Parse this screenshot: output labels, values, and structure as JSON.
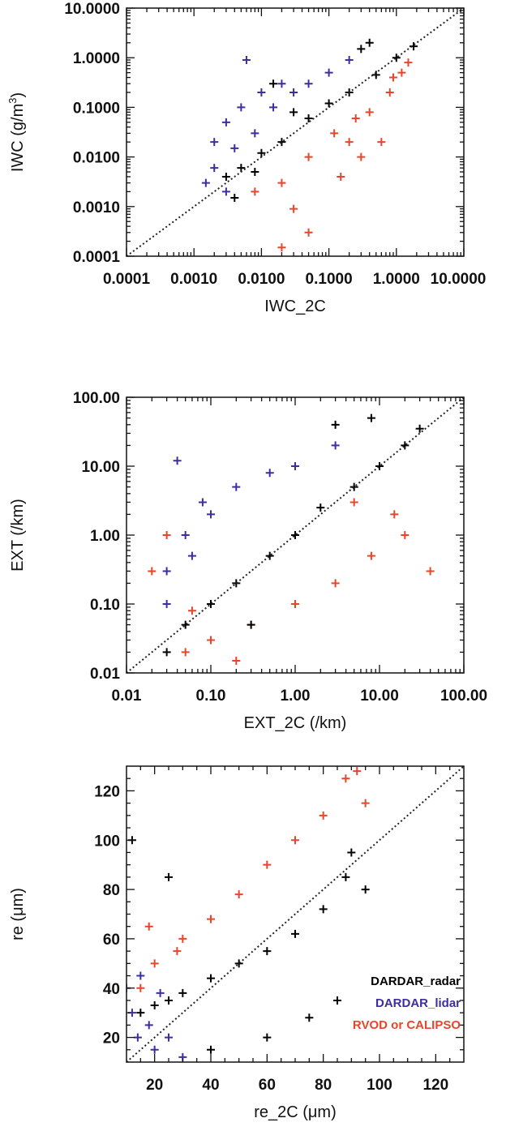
{
  "chart_data": [
    {
      "type": "scatter",
      "title": "",
      "xlabel": "IWC_2C",
      "ylabel": "IWC (g/m",
      "ylabel_sup": "3",
      "ylabel_end": ")",
      "xscale": "log",
      "yscale": "log",
      "xlim": [
        0.0001,
        10
      ],
      "ylim": [
        0.0001,
        10
      ],
      "xticks": [
        0.0001,
        0.001,
        0.01,
        0.1,
        1,
        10
      ],
      "xtick_labels": [
        "0.0001",
        "0.0010",
        "0.0100",
        "0.1000",
        "1.0000",
        "10.0000"
      ],
      "yticks": [
        0.0001,
        0.001,
        0.01,
        0.1,
        1,
        10
      ],
      "ytick_labels": [
        "0.0001",
        "0.0010",
        "0.0100",
        "0.1000",
        "1.0000",
        "10.0000"
      ],
      "one_to_one_line": true,
      "series": [
        {
          "color": "#e8452a",
          "points": [
            [
              0.008,
              0.002
            ],
            [
              0.02,
              0.003
            ],
            [
              0.05,
              0.01
            ],
            [
              0.12,
              0.03
            ],
            [
              0.2,
              0.02
            ],
            [
              0.4,
              0.08
            ],
            [
              0.9,
              0.4
            ],
            [
              1.5,
              0.8
            ],
            [
              0.15,
              0.004
            ],
            [
              0.3,
              0.01
            ],
            [
              0.6,
              0.02
            ],
            [
              0.03,
              0.0009
            ],
            [
              0.05,
              0.0003
            ],
            [
              0.02,
              0.00015
            ],
            [
              0.8,
              0.2
            ],
            [
              1.2,
              0.5
            ],
            [
              0.25,
              0.06
            ]
          ]
        },
        {
          "color": "#3b2ea0",
          "points": [
            [
              0.002,
              0.02
            ],
            [
              0.003,
              0.05
            ],
            [
              0.005,
              0.1
            ],
            [
              0.002,
              0.006
            ],
            [
              0.01,
              0.2
            ],
            [
              0.015,
              0.1
            ],
            [
              0.02,
              0.3
            ],
            [
              0.004,
              0.015
            ],
            [
              0.0015,
              0.003
            ],
            [
              0.003,
              0.002
            ],
            [
              0.006,
              0.9
            ],
            [
              0.008,
              0.03
            ],
            [
              0.03,
              0.2
            ],
            [
              0.05,
              0.3
            ],
            [
              0.1,
              0.5
            ],
            [
              0.2,
              0.9
            ]
          ]
        },
        {
          "color": "#000000",
          "points": [
            [
              0.003,
              0.004
            ],
            [
              0.005,
              0.006
            ],
            [
              0.01,
              0.012
            ],
            [
              0.02,
              0.02
            ],
            [
              0.05,
              0.06
            ],
            [
              0.1,
              0.12
            ],
            [
              0.2,
              0.2
            ],
            [
              0.5,
              0.45
            ],
            [
              1,
              1
            ],
            [
              1.8,
              1.7
            ],
            [
              0.015,
              0.3
            ],
            [
              0.3,
              1.5
            ],
            [
              0.4,
              2
            ],
            [
              0.03,
              0.08
            ],
            [
              0.008,
              0.005
            ],
            [
              0.004,
              0.0015
            ]
          ]
        }
      ]
    },
    {
      "type": "scatter",
      "title": "",
      "xlabel": "EXT_2C (/km)",
      "ylabel": "EXT (/km)",
      "xscale": "log",
      "yscale": "log",
      "xlim": [
        0.01,
        100
      ],
      "ylim": [
        0.01,
        100
      ],
      "xticks": [
        0.01,
        0.1,
        1,
        10,
        100
      ],
      "xtick_labels": [
        "0.01",
        "0.10",
        "1.00",
        "10.00",
        "100.00"
      ],
      "yticks": [
        0.01,
        0.1,
        1,
        10,
        100
      ],
      "ytick_labels": [
        "0.01",
        "0.10",
        "1.00",
        "10.00",
        "100.00"
      ],
      "one_to_one_line": true,
      "series": [
        {
          "color": "#e8452a",
          "points": [
            [
              0.02,
              0.3
            ],
            [
              0.03,
              1.0
            ],
            [
              0.05,
              0.02
            ],
            [
              0.1,
              0.03
            ],
            [
              0.3,
              0.05
            ],
            [
              1,
              0.1
            ],
            [
              3,
              0.2
            ],
            [
              8,
              0.5
            ],
            [
              20,
              1
            ],
            [
              40,
              0.3
            ],
            [
              0.06,
              0.08
            ],
            [
              0.2,
              0.015
            ],
            [
              5,
              3
            ],
            [
              15,
              2
            ]
          ]
        },
        {
          "color": "#3b2ea0",
          "points": [
            [
              0.03,
              0.3
            ],
            [
              0.04,
              12
            ],
            [
              0.05,
              1
            ],
            [
              0.08,
              3
            ],
            [
              0.1,
              2
            ],
            [
              0.2,
              5
            ],
            [
              0.5,
              8
            ],
            [
              0.03,
              0.1
            ],
            [
              0.06,
              0.5
            ],
            [
              1,
              10
            ],
            [
              3,
              20
            ]
          ]
        },
        {
          "color": "#000000",
          "points": [
            [
              0.05,
              0.05
            ],
            [
              0.1,
              0.1
            ],
            [
              0.2,
              0.2
            ],
            [
              0.5,
              0.5
            ],
            [
              1,
              1
            ],
            [
              2,
              2.5
            ],
            [
              5,
              5
            ],
            [
              10,
              10
            ],
            [
              20,
              20
            ],
            [
              30,
              35
            ],
            [
              0.03,
              0.02
            ],
            [
              0.3,
              0.05
            ],
            [
              3,
              40
            ],
            [
              8,
              50
            ]
          ]
        }
      ]
    },
    {
      "type": "scatter",
      "title": "",
      "xlabel": "re_2C (μm)",
      "ylabel": "re  (μm)",
      "xscale": "linear",
      "yscale": "linear",
      "xlim": [
        10,
        130
      ],
      "ylim": [
        10,
        130
      ],
      "xticks": [
        20,
        40,
        60,
        80,
        100,
        120
      ],
      "xtick_labels": [
        "20",
        "40",
        "60",
        "80",
        "100",
        "120"
      ],
      "yticks": [
        20,
        40,
        60,
        80,
        100,
        120
      ],
      "ytick_labels": [
        "20",
        "40",
        "60",
        "80",
        "100",
        "120"
      ],
      "one_to_one_line": true,
      "series": [
        {
          "name": "DARDAR_radar",
          "color": "#000000",
          "points": [
            [
              15,
              30
            ],
            [
              20,
              33
            ],
            [
              25,
              35
            ],
            [
              30,
              38
            ],
            [
              40,
              44
            ],
            [
              50,
              50
            ],
            [
              60,
              55
            ],
            [
              70,
              62
            ],
            [
              80,
              72
            ],
            [
              88,
              85
            ],
            [
              90,
              95
            ],
            [
              12,
              100
            ],
            [
              25,
              85
            ],
            [
              40,
              15
            ],
            [
              60,
              20
            ],
            [
              75,
              28
            ],
            [
              85,
              35
            ],
            [
              95,
              80
            ]
          ]
        },
        {
          "name": "DARDAR_lidar",
          "color": "#3b2ea0",
          "points": [
            [
              10,
              40
            ],
            [
              12,
              30
            ],
            [
              14,
              20
            ],
            [
              15,
              45
            ],
            [
              18,
              25
            ],
            [
              20,
              15
            ],
            [
              22,
              38
            ],
            [
              25,
              20
            ],
            [
              30,
              12
            ]
          ]
        },
        {
          "name": "RVOD or CALIPSO",
          "color": "#e8452a",
          "points": [
            [
              15,
              40
            ],
            [
              20,
              50
            ],
            [
              30,
              60
            ],
            [
              40,
              68
            ],
            [
              50,
              78
            ],
            [
              60,
              90
            ],
            [
              70,
              100
            ],
            [
              80,
              110
            ],
            [
              88,
              125
            ],
            [
              92,
              128
            ],
            [
              95,
              115
            ],
            [
              18,
              65
            ],
            [
              28,
              55
            ]
          ]
        }
      ]
    }
  ]
}
